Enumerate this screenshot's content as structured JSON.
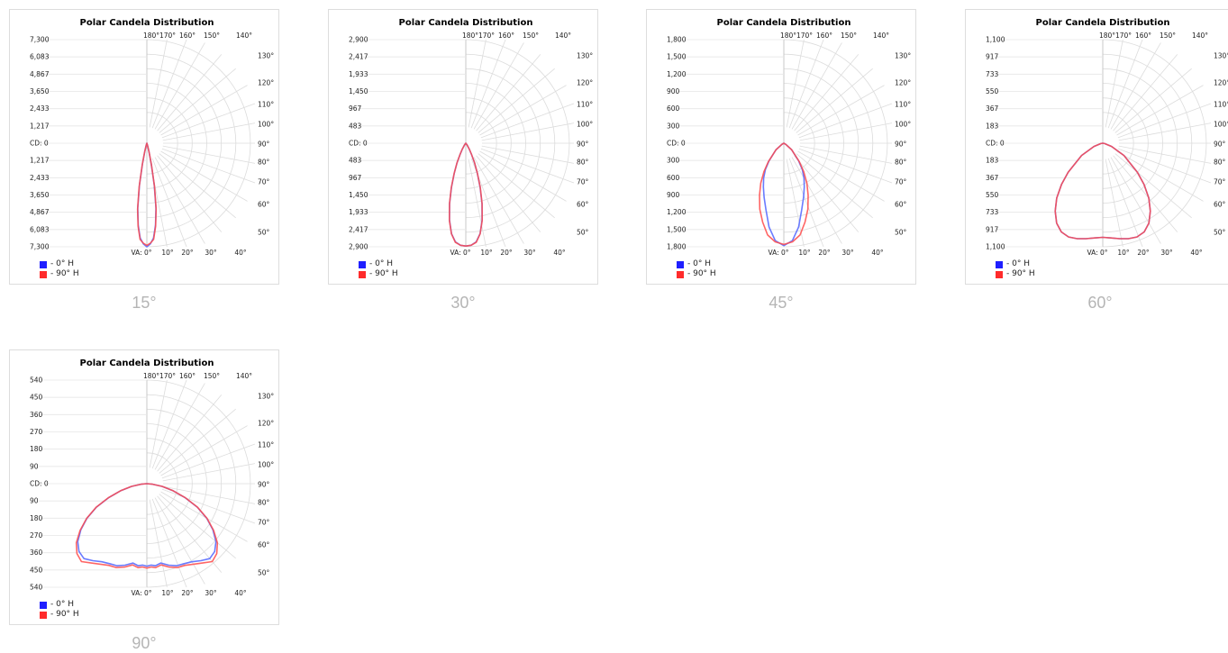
{
  "legend_colors": {
    "h0": "#1f1fff",
    "h90": "#ff2b2b"
  },
  "chart_data": [
    {
      "type": "polar",
      "title": "Polar Candela Distribution",
      "caption": "15°",
      "radial_ticks": [
        "7,300",
        "6,083",
        "4,867",
        "3,650",
        "2,433",
        "1,217",
        "CD: 0",
        "1,217",
        "2,433",
        "3,650",
        "4,867",
        "6,083",
        "7,300"
      ],
      "max_cd": 7300,
      "series": [
        {
          "name": "- 0° H",
          "color": "#5a6dff",
          "values": [
            [
              0,
              7300
            ],
            [
              2,
              7100
            ],
            [
              4,
              6700
            ],
            [
              6,
              5800
            ],
            [
              8,
              4600
            ],
            [
              10,
              3000
            ],
            [
              12,
              1500
            ],
            [
              14,
              600
            ],
            [
              16,
              200
            ],
            [
              20,
              60
            ],
            [
              30,
              0
            ]
          ]
        },
        {
          "name": "- 90° H",
          "color": "#ff4a4a",
          "values": [
            [
              0,
              7200
            ],
            [
              2,
              7050
            ],
            [
              4,
              6800
            ],
            [
              6,
              5900
            ],
            [
              8,
              4700
            ],
            [
              10,
              3100
            ],
            [
              12,
              1550
            ],
            [
              14,
              650
            ],
            [
              16,
              220
            ],
            [
              20,
              60
            ],
            [
              30,
              0
            ]
          ]
        }
      ]
    },
    {
      "type": "polar",
      "title": "Polar Candela Distribution",
      "caption": "30°",
      "radial_ticks": [
        "2,900",
        "2,417",
        "1,933",
        "1,450",
        "967",
        "483",
        "CD: 0",
        "483",
        "967",
        "1,450",
        "1,933",
        "2,417",
        "2,900"
      ],
      "max_cd": 2900,
      "series": [
        {
          "name": "- 0° H",
          "color": "#5a6dff",
          "values": [
            [
              0,
              2880
            ],
            [
              3,
              2860
            ],
            [
              6,
              2780
            ],
            [
              9,
              2560
            ],
            [
              12,
              2200
            ],
            [
              15,
              1750
            ],
            [
              18,
              1300
            ],
            [
              21,
              900
            ],
            [
              24,
              600
            ],
            [
              27,
              350
            ],
            [
              30,
              200
            ],
            [
              35,
              60
            ],
            [
              45,
              0
            ]
          ]
        },
        {
          "name": "- 90° H",
          "color": "#ff4a4a",
          "values": [
            [
              0,
              2880
            ],
            [
              3,
              2860
            ],
            [
              6,
              2790
            ],
            [
              9,
              2570
            ],
            [
              12,
              2210
            ],
            [
              15,
              1760
            ],
            [
              18,
              1310
            ],
            [
              21,
              905
            ],
            [
              24,
              605
            ],
            [
              27,
              355
            ],
            [
              30,
              205
            ],
            [
              35,
              60
            ],
            [
              45,
              0
            ]
          ]
        }
      ]
    },
    {
      "type": "polar",
      "title": "Polar Candela Distribution",
      "caption": "45°",
      "radial_ticks": [
        "1,800",
        "1,500",
        "1,200",
        "900",
        "600",
        "300",
        "CD: 0",
        "300",
        "600",
        "900",
        "1,200",
        "1,500",
        "1,800"
      ],
      "max_cd": 1800,
      "series": [
        {
          "name": "- 0° H",
          "color": "#5a6dff",
          "values": [
            [
              0,
              1780
            ],
            [
              5,
              1700
            ],
            [
              10,
              1480
            ],
            [
              15,
              1200
            ],
            [
              20,
              1000
            ],
            [
              25,
              840
            ],
            [
              30,
              700
            ],
            [
              35,
              560
            ],
            [
              40,
              400
            ],
            [
              50,
              180
            ],
            [
              60,
              40
            ],
            [
              70,
              0
            ]
          ]
        },
        {
          "name": "- 90° H",
          "color": "#ff4a4a",
          "values": [
            [
              0,
              1760
            ],
            [
              5,
              1720
            ],
            [
              10,
              1620
            ],
            [
              15,
              1420
            ],
            [
              20,
              1220
            ],
            [
              25,
              1000
            ],
            [
              30,
              800
            ],
            [
              35,
              600
            ],
            [
              40,
              420
            ],
            [
              50,
              180
            ],
            [
              60,
              40
            ],
            [
              70,
              0
            ]
          ]
        }
      ]
    },
    {
      "type": "polar",
      "title": "Polar Candela Distribution",
      "caption": "60°",
      "radial_ticks": [
        "1,100",
        "917",
        "733",
        "550",
        "367",
        "183",
        "CD: 0",
        "183",
        "367",
        "550",
        "733",
        "917",
        "1,100"
      ],
      "max_cd": 1100,
      "series": [
        {
          "name": "- 0° H",
          "color": "#5a6dff",
          "values": [
            [
              0,
              1000
            ],
            [
              5,
              1010
            ],
            [
              10,
              1030
            ],
            [
              15,
              1050
            ],
            [
              20,
              1060
            ],
            [
              25,
              1040
            ],
            [
              30,
              980
            ],
            [
              35,
              880
            ],
            [
              40,
              760
            ],
            [
              45,
              620
            ],
            [
              50,
              480
            ],
            [
              60,
              260
            ],
            [
              70,
              100
            ],
            [
              80,
              20
            ],
            [
              90,
              0
            ]
          ]
        },
        {
          "name": "- 90° H",
          "color": "#ff4a4a",
          "values": [
            [
              0,
              1000
            ],
            [
              5,
              1010
            ],
            [
              10,
              1030
            ],
            [
              15,
              1050
            ],
            [
              20,
              1060
            ],
            [
              25,
              1040
            ],
            [
              30,
              980
            ],
            [
              35,
              880
            ],
            [
              40,
              760
            ],
            [
              45,
              620
            ],
            [
              50,
              480
            ],
            [
              60,
              260
            ],
            [
              70,
              100
            ],
            [
              80,
              20
            ],
            [
              90,
              0
            ]
          ]
        }
      ]
    },
    {
      "type": "polar",
      "title": "Polar Candela Distribution",
      "caption": "90°",
      "radial_ticks": [
        "540",
        "450",
        "360",
        "270",
        "180",
        "90",
        "CD: 0",
        "90",
        "180",
        "270",
        "360",
        "450",
        "540"
      ],
      "max_cd": 540,
      "series": [
        {
          "name": "- 0° H",
          "color": "#5a6dff",
          "values": [
            [
              0,
              430
            ],
            [
              3,
              425
            ],
            [
              6,
              430
            ],
            [
              10,
              420
            ],
            [
              15,
              440
            ],
            [
              20,
              455
            ],
            [
              25,
              460
            ],
            [
              30,
              470
            ],
            [
              35,
              490
            ],
            [
              40,
              510
            ],
            [
              45,
              500
            ],
            [
              50,
              470
            ],
            [
              55,
              420
            ],
            [
              60,
              360
            ],
            [
              65,
              290
            ],
            [
              70,
              210
            ],
            [
              75,
              140
            ],
            [
              80,
              80
            ],
            [
              85,
              30
            ],
            [
              90,
              0
            ]
          ]
        },
        {
          "name": "- 90° H",
          "color": "#ff4a4a",
          "values": [
            [
              0,
              440
            ],
            [
              3,
              435
            ],
            [
              6,
              440
            ],
            [
              10,
              430
            ],
            [
              15,
              450
            ],
            [
              20,
              465
            ],
            [
              25,
              470
            ],
            [
              30,
              485
            ],
            [
              35,
              505
            ],
            [
              40,
              530
            ],
            [
              45,
              515
            ],
            [
              50,
              480
            ],
            [
              55,
              425
            ],
            [
              60,
              362
            ],
            [
              65,
              292
            ],
            [
              70,
              212
            ],
            [
              75,
              141
            ],
            [
              80,
              81
            ],
            [
              85,
              30
            ],
            [
              90,
              0
            ]
          ]
        }
      ]
    }
  ]
}
